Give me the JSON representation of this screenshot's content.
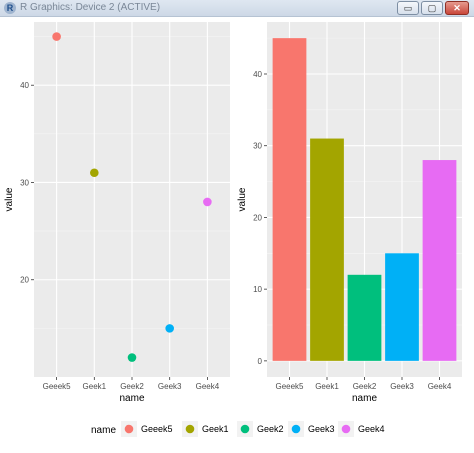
{
  "window": {
    "title": "R Graphics: Device 2 (ACTIVE)",
    "logo": "R",
    "minimize_label": "▭",
    "restore_label": "▢",
    "close_label": "✕"
  },
  "colors": {
    "Geeek5": "#F8766D",
    "Geek1": "#A3A500",
    "Geek2": "#00BF7D",
    "Geek3": "#00B0F6",
    "Geek4": "#E76BF3"
  },
  "legend": {
    "title": "name",
    "entries": [
      "Geeek5",
      "Geek1",
      "Geek2",
      "Geek3",
      "Geek4"
    ]
  },
  "chart_data": [
    {
      "type": "scatter",
      "categories": [
        "Geeek5",
        "Geek1",
        "Geek2",
        "Geek3",
        "Geek4"
      ],
      "values": [
        45,
        31,
        12,
        15,
        28
      ],
      "xlabel": "name",
      "ylabel": "value",
      "ylim": [
        10,
        46.5
      ],
      "yticks": [
        20,
        30,
        40
      ],
      "grid": true
    },
    {
      "type": "bar",
      "categories": [
        "Geeek5",
        "Geek1",
        "Geek2",
        "Geek3",
        "Geek4"
      ],
      "values": [
        45,
        31,
        12,
        15,
        28
      ],
      "xlabel": "name",
      "ylabel": "value",
      "ylim": [
        -2.25,
        47.25
      ],
      "yticks": [
        0,
        10,
        20,
        30,
        40
      ],
      "grid": true
    }
  ]
}
